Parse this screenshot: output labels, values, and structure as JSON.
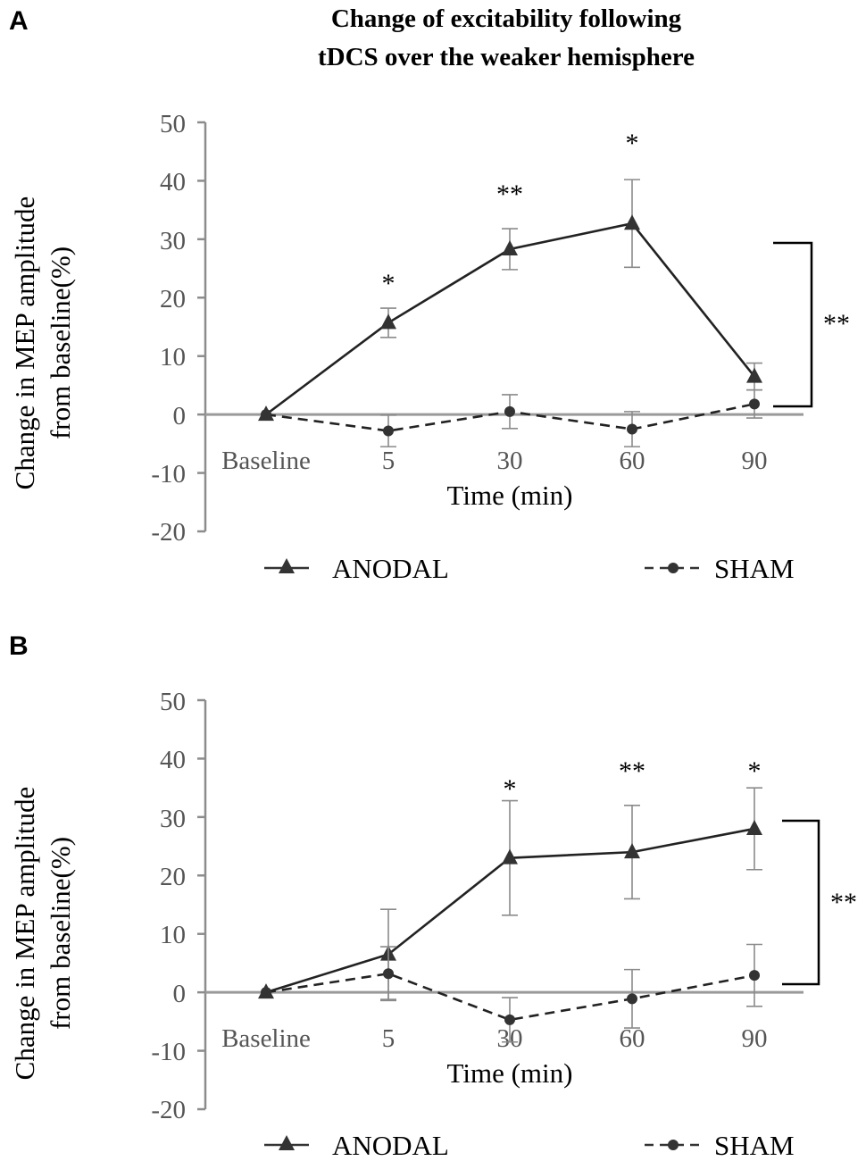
{
  "figure": {
    "title_line1": "Change of excitability following",
    "title_line2": "tDCS over the weaker hemisphere"
  },
  "chart_data": [
    {
      "type": "line",
      "panel": "A",
      "title": "Change of excitability following tDCS over the weaker hemisphere",
      "xlabel": "Time (min)",
      "ylabel_line1": "Change in MEP amplitude",
      "ylabel_line2": "from baseline(%)",
      "ylim": [
        -20,
        50
      ],
      "yticks": [
        "50",
        "40",
        "30",
        "20",
        "10",
        "0",
        "-10",
        "-20"
      ],
      "categories": [
        "Baseline",
        "5",
        "30",
        "60",
        "90"
      ],
      "series": [
        {
          "name": "ANODAL",
          "values": [
            0,
            15.7,
            28.3,
            32.7,
            6.5
          ],
          "errors": [
            0,
            2.5,
            3.5,
            7.5,
            2.3
          ]
        },
        {
          "name": "SHAM",
          "values": [
            0,
            -2.8,
            0.5,
            -2.5,
            1.8
          ],
          "errors": [
            0,
            2.7,
            2.9,
            3.0,
            2.4
          ]
        }
      ],
      "annotations": [
        "",
        "*",
        "**",
        "*",
        ""
      ],
      "group_significance": "**"
    },
    {
      "type": "line",
      "panel": "B",
      "xlabel": "Time (min)",
      "ylabel_line1": "Change in MEP amplitude",
      "ylabel_line2": "from baseline(%)",
      "ylim": [
        -20,
        50
      ],
      "yticks": [
        "50",
        "40",
        "30",
        "20",
        "10",
        "0",
        "-10",
        "-20"
      ],
      "categories": [
        "Baseline",
        "5",
        "30",
        "60",
        "90"
      ],
      "series": [
        {
          "name": "ANODAL",
          "values": [
            0,
            6.5,
            23,
            24,
            28
          ],
          "errors": [
            0,
            7.7,
            9.8,
            8.0,
            7.0
          ]
        },
        {
          "name": "SHAM",
          "values": [
            0,
            3.2,
            -4.7,
            -1.1,
            2.9
          ],
          "errors": [
            0,
            4.6,
            3.8,
            5.0,
            5.3
          ]
        }
      ],
      "annotations": [
        "",
        "",
        "*",
        "**",
        "*"
      ],
      "group_significance": "**"
    }
  ]
}
